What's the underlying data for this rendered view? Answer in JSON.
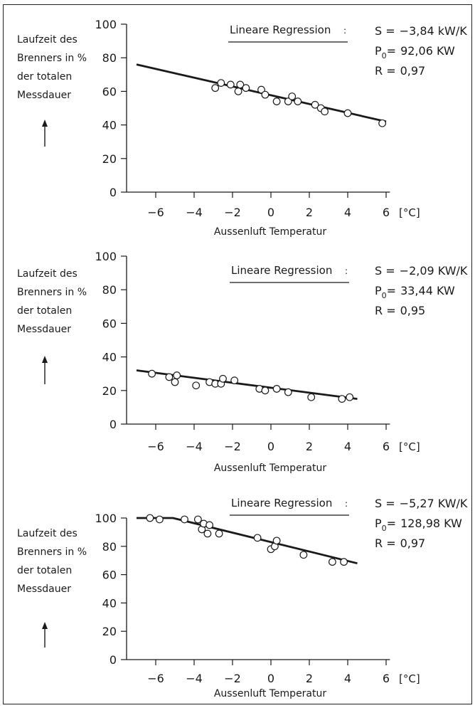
{
  "chart_data": [
    {
      "type": "scatter",
      "ylabel_lines": [
        "Laufzeit des",
        "Brenners in %",
        "der totalen",
        "Messdauer"
      ],
      "xlabel": "Aussenluft Temperatur",
      "x_unit": "[°C]",
      "x_ticks": [
        "-6",
        "-4",
        "-2",
        "0",
        "2",
        "4",
        "6"
      ],
      "y_ticks": [
        "0",
        "20",
        "40",
        "60",
        "80",
        "100"
      ],
      "xlim": [
        -7,
        6.5
      ],
      "ylim": [
        0,
        100
      ],
      "regression_title": "Lineare Regression",
      "stats": [
        {
          "label": "S =",
          "value": "−3,84 kW/K"
        },
        {
          "label": "P",
          "sub": "0",
          "tail": "=",
          "value": "92,06 KW"
        },
        {
          "label": "R =",
          "value": "0,97"
        }
      ],
      "points": [
        {
          "x": -2.9,
          "y": 62
        },
        {
          "x": -2.6,
          "y": 65
        },
        {
          "x": -2.1,
          "y": 64
        },
        {
          "x": -1.7,
          "y": 60
        },
        {
          "x": -1.6,
          "y": 64
        },
        {
          "x": -1.3,
          "y": 62
        },
        {
          "x": -0.5,
          "y": 61
        },
        {
          "x": -0.3,
          "y": 58
        },
        {
          "x": 0.3,
          "y": 54
        },
        {
          "x": 0.9,
          "y": 54
        },
        {
          "x": 1.1,
          "y": 57
        },
        {
          "x": 1.4,
          "y": 54
        },
        {
          "x": 2.3,
          "y": 52
        },
        {
          "x": 2.6,
          "y": 50
        },
        {
          "x": 2.8,
          "y": 48
        },
        {
          "x": 4.0,
          "y": 47
        },
        {
          "x": 5.8,
          "y": 41
        }
      ],
      "line": [
        {
          "x": -7,
          "y": 76
        },
        {
          "x": 6.0,
          "y": 42
        }
      ]
    },
    {
      "type": "scatter",
      "ylabel_lines": [
        "Laufzeit des",
        "Brenners in %",
        "der totalen",
        "Messdauer"
      ],
      "xlabel": "Aussenluft Temperatur",
      "x_unit": "[°C]",
      "x_ticks": [
        "-6",
        "-4",
        "-2",
        "0",
        "2",
        "4",
        "6"
      ],
      "y_ticks": [
        "0",
        "20",
        "40",
        "60",
        "80",
        "100"
      ],
      "xlim": [
        -7,
        6.5
      ],
      "ylim": [
        0,
        100
      ],
      "regression_title": "Lineare Regression",
      "stats": [
        {
          "label": "S =",
          "value": "−2,09 KW/K"
        },
        {
          "label": "P",
          "sub": "0",
          "tail": "=",
          "value": "33,44 KW"
        },
        {
          "label": "R =",
          "value": "0,95"
        }
      ],
      "points": [
        {
          "x": -6.2,
          "y": 30
        },
        {
          "x": -5.3,
          "y": 28
        },
        {
          "x": -5.0,
          "y": 25
        },
        {
          "x": -4.9,
          "y": 29
        },
        {
          "x": -3.9,
          "y": 23
        },
        {
          "x": -3.2,
          "y": 25
        },
        {
          "x": -2.9,
          "y": 24
        },
        {
          "x": -2.6,
          "y": 24
        },
        {
          "x": -2.5,
          "y": 27
        },
        {
          "x": -1.9,
          "y": 26
        },
        {
          "x": -0.6,
          "y": 21
        },
        {
          "x": -0.3,
          "y": 20
        },
        {
          "x": 0.3,
          "y": 21
        },
        {
          "x": 0.9,
          "y": 19
        },
        {
          "x": 2.1,
          "y": 16
        },
        {
          "x": 3.7,
          "y": 15
        },
        {
          "x": 4.1,
          "y": 16
        }
      ],
      "line": [
        {
          "x": -7,
          "y": 32
        },
        {
          "x": 4.5,
          "y": 15
        }
      ]
    },
    {
      "type": "scatter",
      "ylabel_lines": [
        "Laufzeit des",
        "Brenners in %",
        "der totalen",
        "Messdauer"
      ],
      "xlabel": "Aussenluft Temperatur",
      "x_unit": "[°C]",
      "x_ticks": [
        "-6",
        "-4",
        "-2",
        "0",
        "2",
        "4",
        "6"
      ],
      "y_ticks": [
        "0",
        "20",
        "40",
        "60",
        "80",
        "100"
      ],
      "xlim": [
        -7,
        6.5
      ],
      "ylim": [
        0,
        100
      ],
      "regression_title": "Lineare Regression",
      "stats": [
        {
          "label": "S =",
          "value": "−5,27 KW/K"
        },
        {
          "label": "P",
          "sub": "0",
          "tail": "=",
          "value": "128,98 KW"
        },
        {
          "label": "R =",
          "value": "0,97"
        }
      ],
      "points": [
        {
          "x": -6.3,
          "y": 100
        },
        {
          "x": -5.8,
          "y": 99
        },
        {
          "x": -4.5,
          "y": 99
        },
        {
          "x": -3.8,
          "y": 99
        },
        {
          "x": -3.6,
          "y": 92
        },
        {
          "x": -3.5,
          "y": 96
        },
        {
          "x": -3.3,
          "y": 89
        },
        {
          "x": -3.2,
          "y": 95
        },
        {
          "x": -2.7,
          "y": 89
        },
        {
          "x": -0.7,
          "y": 86
        },
        {
          "x": -0.0,
          "y": 78
        },
        {
          "x": 0.2,
          "y": 80
        },
        {
          "x": 0.3,
          "y": 84
        },
        {
          "x": 1.7,
          "y": 74
        },
        {
          "x": 3.2,
          "y": 69
        },
        {
          "x": 3.8,
          "y": 69
        }
      ],
      "line": [
        {
          "x": -7,
          "y": 100
        },
        {
          "x": -5.1,
          "y": 100
        },
        {
          "x": 4.5,
          "y": 68
        }
      ]
    }
  ]
}
